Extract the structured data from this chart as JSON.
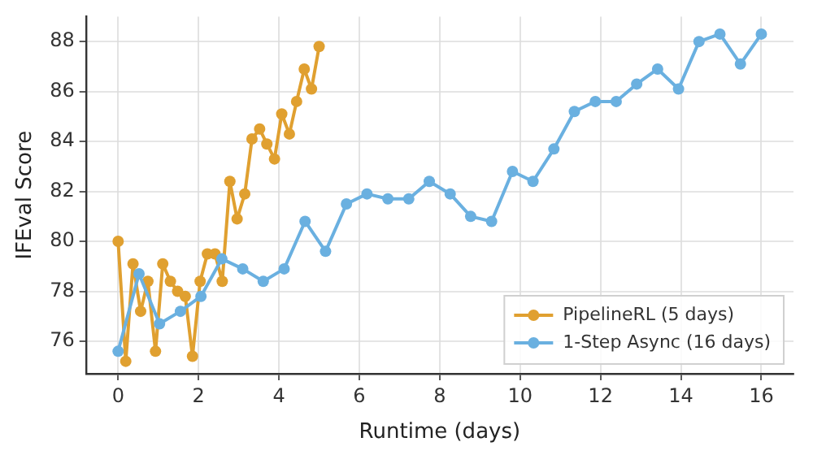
{
  "chart_data": {
    "type": "line",
    "xlabel": "Runtime (days)",
    "ylabel": "IFEval Score",
    "xlim": [
      -0.8,
      16.8
    ],
    "ylim": [
      74.7,
      89
    ],
    "xticks": [
      0,
      2,
      4,
      6,
      8,
      10,
      12,
      14,
      16
    ],
    "yticks": [
      76,
      78,
      80,
      82,
      84,
      86,
      88
    ],
    "grid": true,
    "legend": "bottom right",
    "marker": "circle",
    "line_style": "solid",
    "series": [
      {
        "name": "PipelineRL (5 days)",
        "color": "#e0a030",
        "x": [
          0,
          0.19,
          0.37,
          0.56,
          0.74,
          0.93,
          1.11,
          1.3,
          1.48,
          1.67,
          1.85,
          2.04,
          2.22,
          2.41,
          2.59,
          2.78,
          2.96,
          3.15,
          3.33,
          3.52,
          3.7,
          3.89,
          4.07,
          4.26,
          4.44,
          4.63,
          4.81,
          5
        ],
        "values": [
          80.0,
          75.2,
          79.1,
          77.2,
          78.4,
          75.6,
          79.1,
          78.4,
          78.0,
          77.8,
          75.4,
          78.4,
          79.5,
          79.5,
          78.4,
          82.4,
          80.9,
          81.9,
          84.1,
          84.5,
          83.9,
          83.3,
          85.1,
          84.3,
          85.6,
          86.9,
          86.1,
          87.8
        ]
      },
      {
        "name": "1-Step Async (16 days)",
        "color": "#6ab0e0",
        "x": [
          0,
          0.52,
          1.03,
          1.55,
          2.06,
          2.58,
          3.1,
          3.61,
          4.13,
          4.65,
          5.16,
          5.68,
          6.19,
          6.71,
          7.23,
          7.74,
          8.26,
          8.77,
          9.29,
          9.81,
          10.32,
          10.84,
          11.35,
          11.87,
          12.39,
          12.9,
          13.42,
          13.94,
          14.45,
          14.97,
          15.48,
          16
        ],
        "values": [
          75.6,
          78.7,
          76.7,
          77.2,
          77.8,
          79.3,
          78.9,
          78.4,
          78.9,
          80.8,
          79.6,
          81.5,
          81.9,
          81.7,
          81.7,
          82.4,
          81.9,
          81.0,
          80.8,
          82.8,
          82.4,
          83.7,
          85.2,
          85.6,
          85.6,
          86.3,
          86.9,
          86.1,
          88.0,
          88.3,
          87.1,
          88.3
        ]
      }
    ]
  }
}
